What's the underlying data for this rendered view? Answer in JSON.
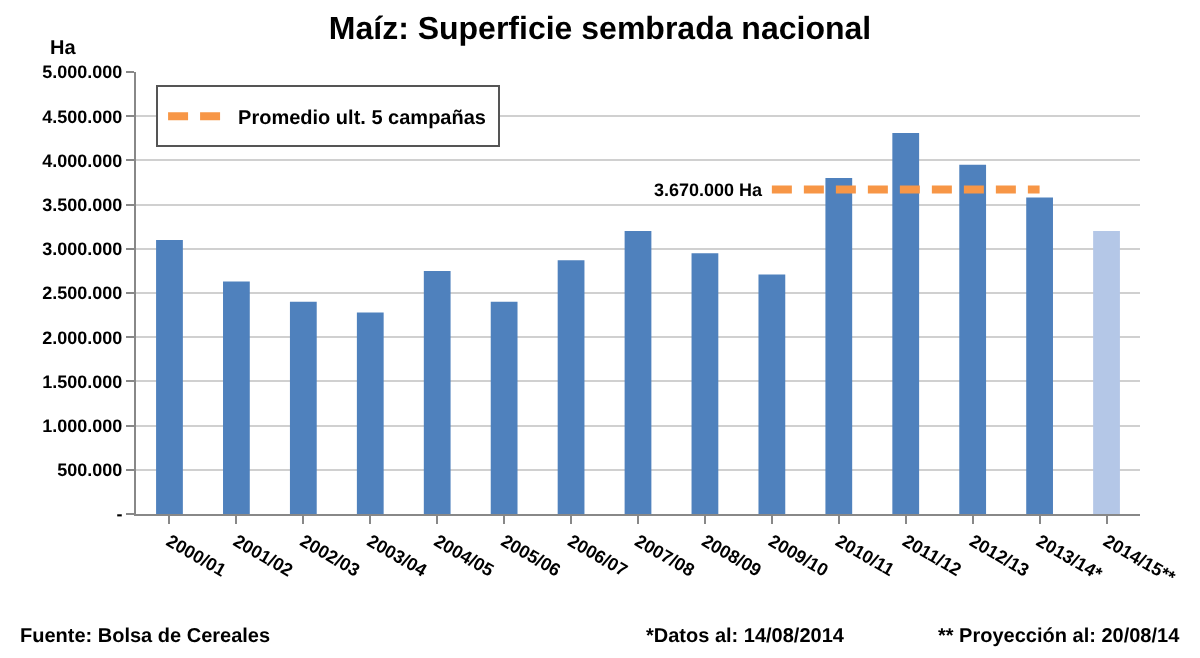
{
  "chart_data": {
    "type": "bar",
    "title": "Maíz: Superficie sembrada nacional",
    "ylabel": "Ha",
    "categories": [
      "2000/01",
      "2001/02",
      "2002/03",
      "2003/04",
      "2004/05",
      "2005/06",
      "2006/07",
      "2007/08",
      "2008/09",
      "2009/10",
      "2010/11",
      "2011/12",
      "2012/13",
      "2013/14*",
      "2014/15**"
    ],
    "series": [
      {
        "colors": [
          "#4f81bd",
          "#4f81bd",
          "#4f81bd",
          "#4f81bd",
          "#4f81bd",
          "#4f81bd",
          "#4f81bd",
          "#4f81bd",
          "#4f81bd",
          "#4f81bd",
          "#4f81bd",
          "#4f81bd",
          "#4f81bd",
          "#4f81bd",
          "#b4c7e7"
        ],
        "values": [
          3100000,
          2630000,
          2400000,
          2280000,
          2750000,
          2400000,
          2870000,
          3200000,
          2950000,
          2710000,
          3800000,
          4310000,
          3950000,
          3580000,
          3200000
        ]
      },
      {
        "type": "line",
        "name": "Promedio ult. 5 campañas",
        "color": "#f79646",
        "line_style": "dashed",
        "values": [
          null,
          null,
          null,
          null,
          null,
          null,
          null,
          null,
          null,
          3670000,
          3670000,
          3670000,
          3670000,
          3670000,
          null
        ]
      }
    ],
    "ylim": [
      0,
      5000000
    ],
    "yticks": [
      {
        "value": 0,
        "label": "-"
      },
      {
        "value": 500000,
        "label": "500.000"
      },
      {
        "value": 1000000,
        "label": "1.000.000"
      },
      {
        "value": 1500000,
        "label": "1.500.000"
      },
      {
        "value": 2000000,
        "label": "2.000.000"
      },
      {
        "value": 2500000,
        "label": "2.500.000"
      },
      {
        "value": 3000000,
        "label": "3.000.000"
      },
      {
        "value": 3500000,
        "label": "3.500.000"
      },
      {
        "value": 4000000,
        "label": "4.000.000"
      },
      {
        "value": 4500000,
        "label": "4.500.000"
      },
      {
        "value": 5000000,
        "label": "5.000.000"
      }
    ],
    "grid": "y",
    "legend": "top left",
    "marker": "none",
    "annotations": [
      {
        "text": "3.670.000 Ha",
        "x": "2009/10",
        "y": 3670000
      },
      "Fuente: Bolsa de Cereales",
      "*Datos al: 14/08/2014",
      "** Proyección al: 20/08/14"
    ]
  }
}
